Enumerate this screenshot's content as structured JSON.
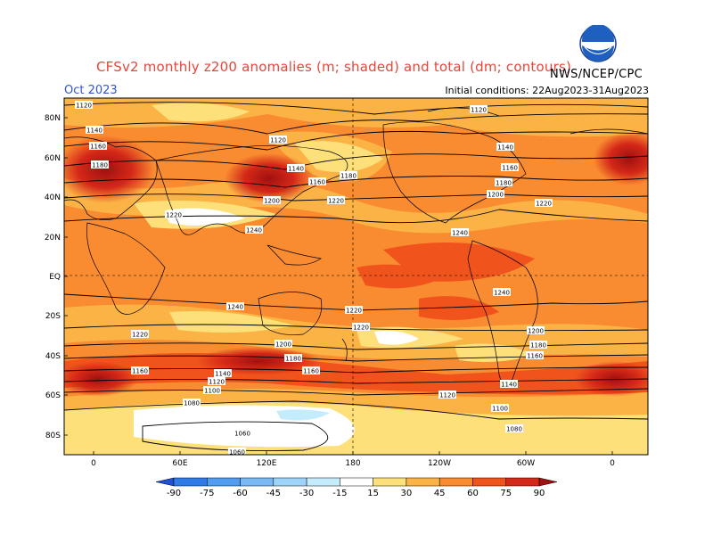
{
  "header": {
    "title": "CFSv2 monthly z200 anomalies (m; shaded) and total (dm; contours)",
    "month": "Oct 2023",
    "initial_conditions": "Initial conditions: 22Aug2023-31Aug2023",
    "agency": "NWS/NCEP/CPC",
    "logo_text": "NOAA"
  },
  "axes": {
    "lat_labels": [
      "80N",
      "60N",
      "40N",
      "20N",
      "EQ",
      "20S",
      "40S",
      "60S",
      "80S"
    ],
    "lon_labels": [
      "0",
      "60E",
      "120E",
      "180",
      "120W",
      "60W",
      "0"
    ]
  },
  "colorbar": {
    "ticks": [
      "-90",
      "-75",
      "-60",
      "-45",
      "-30",
      "-15",
      "15",
      "30",
      "45",
      "60",
      "75",
      "90"
    ],
    "colors": [
      "#1f50d8",
      "#2f7ce8",
      "#4f9cf0",
      "#78b8f4",
      "#9ed4fa",
      "#c5ecfc",
      "#ffffff",
      "#fde07a",
      "#fbb346",
      "#f98b30",
      "#f0541c",
      "#d42818",
      "#a01010"
    ]
  },
  "contour_labels": [
    "1120",
    "1140",
    "1160",
    "1180",
    "1120",
    "1140",
    "1160",
    "1180",
    "1200",
    "1220",
    "1120",
    "1140",
    "1160",
    "1180",
    "1200",
    "1220",
    "1220",
    "1240",
    "1240",
    "1240",
    "1240",
    "1220",
    "1220",
    "1200",
    "1180",
    "1160",
    "1220",
    "1200",
    "1180",
    "1160",
    "1160",
    "1140",
    "1120",
    "1100",
    "1080",
    "1120",
    "1100",
    "1080",
    "1060",
    "1060",
    "1140"
  ]
}
